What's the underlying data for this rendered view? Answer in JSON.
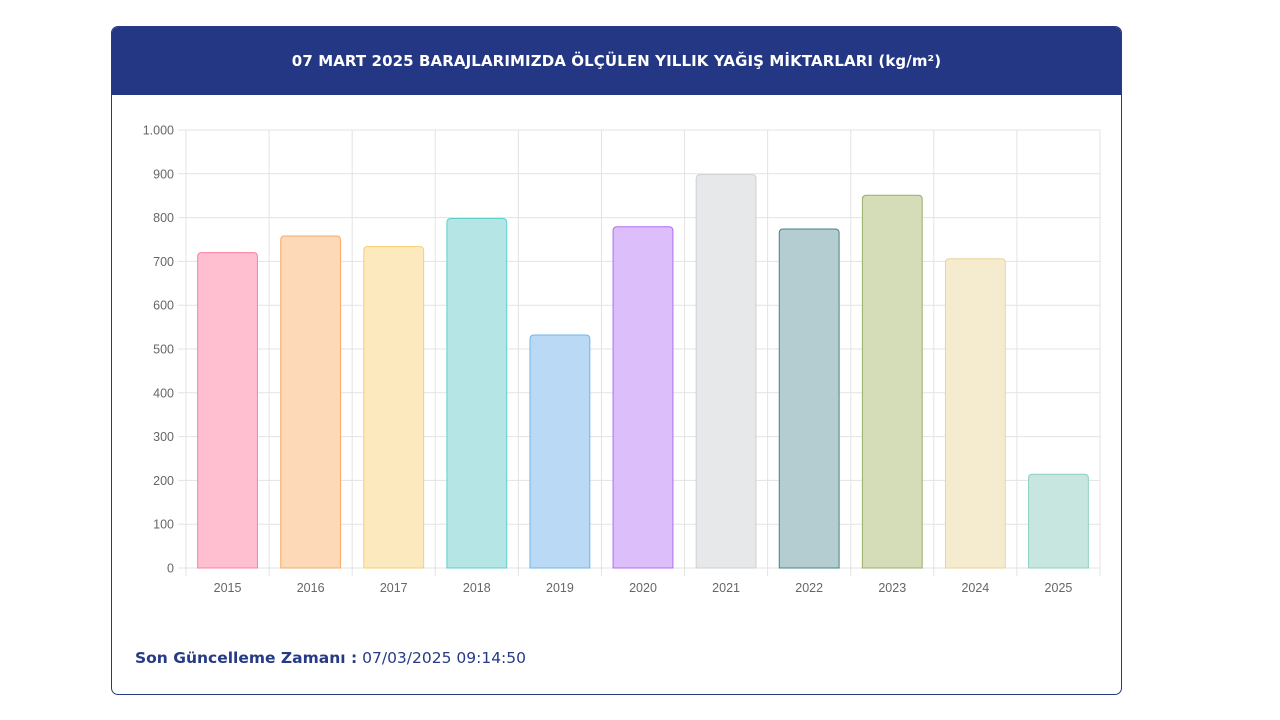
{
  "card": {
    "title": "07 MART 2025 BARAJLARIMIZDA ÖLÇÜLEN YILLIK YAĞIŞ MİKTARLARI (kg/m²)"
  },
  "footer": {
    "label": "Son Güncelleme Zamanı :",
    "value": "07/03/2025 09:14:50"
  },
  "colors": {
    "header_bg": "#243784",
    "accent": "#263a86"
  },
  "chart_data": {
    "type": "bar",
    "title": "07 MART 2025 BARAJLARIMIZDA ÖLÇÜLEN YILLIK YAĞIŞ MİKTARLARI (kg/m²)",
    "xlabel": "",
    "ylabel": "",
    "ylim": [
      0,
      1000
    ],
    "yticks": [
      0,
      100,
      200,
      300,
      400,
      500,
      600,
      700,
      800,
      900,
      1000
    ],
    "ytick_labels": [
      "0",
      "100",
      "200",
      "300",
      "400",
      "500",
      "600",
      "700",
      "800",
      "900",
      "1.000"
    ],
    "categories": [
      "2015",
      "2016",
      "2017",
      "2018",
      "2019",
      "2020",
      "2021",
      "2022",
      "2023",
      "2024",
      "2025"
    ],
    "values": [
      720,
      758,
      734,
      798,
      532,
      779,
      898,
      774,
      851,
      706,
      214
    ],
    "bar_fill": [
      "#ffbfd1",
      "#fdd9b7",
      "#fde9be",
      "#b5e6e5",
      "#b9d9f5",
      "#dcbefb",
      "#e7e8ea",
      "#b4cdd0",
      "#d4ddb8",
      "#f5ebcf",
      "#c7e6df"
    ],
    "bar_stroke": [
      "#ff7fa1",
      "#f5ab6a",
      "#f8cf72",
      "#5ccfc9",
      "#6eb5ee",
      "#b06ef3",
      "#cfd1d5",
      "#4b8088",
      "#98ad6c",
      "#ebd39b",
      "#8fd1bf"
    ],
    "grid": true,
    "legend": "none"
  }
}
